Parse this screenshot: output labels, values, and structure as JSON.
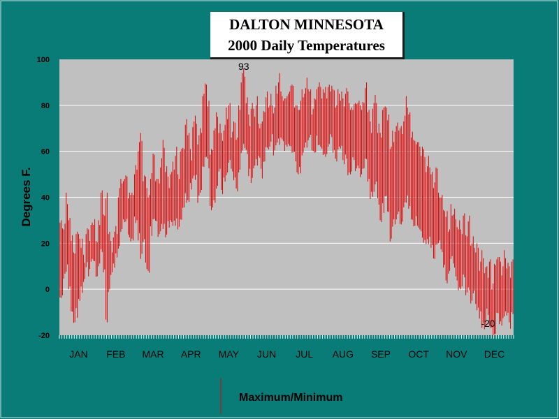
{
  "chart_data": {
    "type": "bar",
    "title": "DALTON MINNESOTA",
    "subtitle": "2000 Daily Temperatures",
    "ylabel": "Degrees F.",
    "xlabel": "",
    "ylim": [
      -20,
      100
    ],
    "yticks": [
      -20,
      0,
      20,
      40,
      60,
      80,
      100
    ],
    "grid": true,
    "legend": {
      "position": "bottom-center",
      "label": "Maximum/Minimum"
    },
    "series_color": "#e00000",
    "months": [
      "JAN",
      "FEB",
      "MAR",
      "APR",
      "MAY",
      "JUN",
      "JUL",
      "AUG",
      "SEP",
      "OCT",
      "NOV",
      "DEC"
    ],
    "annotations": [
      {
        "text": "93",
        "x_day": 148,
        "y": 93
      },
      {
        "text": "-20",
        "x_day": 345,
        "y": -20
      }
    ],
    "daily_max_monthly_samples": {
      "JAN": [
        27,
        27,
        38,
        30,
        25,
        15,
        27,
        22,
        20,
        12,
        25,
        22,
        28,
        32,
        20
      ],
      "FEB": [
        30,
        40,
        33,
        38,
        25,
        20,
        24,
        27,
        42,
        48,
        45,
        50,
        38,
        42,
        40
      ],
      "MAR": [
        52,
        62,
        65,
        48,
        45,
        40,
        52,
        58,
        50,
        46,
        55,
        62,
        52,
        45,
        50
      ],
      "APR": [
        55,
        60,
        50,
        58,
        62,
        70,
        68,
        60,
        72,
        75,
        65,
        70,
        82,
        90,
        78
      ],
      "MAY": [
        60,
        72,
        75,
        70,
        65,
        70,
        75,
        80,
        70,
        72,
        68,
        78,
        92,
        93,
        82
      ],
      "JUN": [
        75,
        80,
        78,
        82,
        72,
        70,
        78,
        82,
        80,
        84,
        78,
        88,
        92,
        86,
        80
      ],
      "JUL": [
        84,
        90,
        88,
        82,
        78,
        80,
        84,
        86,
        88,
        86,
        80,
        82,
        90,
        88,
        85
      ],
      "AUG": [
        84,
        88,
        90,
        86,
        82,
        85,
        84,
        80,
        86,
        82,
        78,
        82,
        80,
        84,
        78
      ],
      "SEP": [
        82,
        86,
        78,
        72,
        80,
        84,
        70,
        68,
        76,
        80,
        72,
        62,
        68,
        70,
        72
      ],
      "OCT": [
        68,
        74,
        80,
        76,
        70,
        64,
        66,
        62,
        60,
        58,
        52,
        54,
        50,
        48,
        52
      ],
      "NOV": [
        42,
        38,
        35,
        30,
        26,
        36,
        34,
        30,
        28,
        26,
        30,
        24,
        28,
        20,
        22
      ],
      "DEC": [
        18,
        10,
        14,
        8,
        6,
        12,
        4,
        10,
        16,
        12,
        8,
        14,
        10,
        6,
        12
      ]
    },
    "daily_min_monthly_samples": {
      "JAN": [
        -2,
        5,
        10,
        0,
        -8,
        -14,
        -10,
        -5,
        0,
        5,
        10,
        8,
        12,
        14,
        6
      ],
      "FEB": [
        10,
        15,
        8,
        -12,
        0,
        5,
        10,
        15,
        20,
        25,
        28,
        30,
        25,
        22,
        20
      ],
      "MAR": [
        30,
        22,
        15,
        20,
        10,
        8,
        25,
        30,
        28,
        24,
        26,
        28,
        22,
        28,
        30
      ],
      "APR": [
        28,
        30,
        26,
        32,
        36,
        40,
        38,
        45,
        50,
        48,
        40,
        42,
        55,
        58,
        55
      ],
      "MAY": [
        35,
        40,
        45,
        50,
        42,
        48,
        52,
        55,
        50,
        48,
        45,
        52,
        58,
        62,
        60
      ],
      "JUN": [
        50,
        48,
        52,
        55,
        58,
        50,
        55,
        60,
        62,
        65,
        60,
        62,
        64,
        66,
        62
      ],
      "JUL": [
        62,
        64,
        60,
        58,
        50,
        52,
        60,
        62,
        64,
        66,
        62,
        60,
        65,
        62,
        60
      ],
      "AUG": [
        60,
        62,
        65,
        60,
        58,
        62,
        60,
        55,
        58,
        52,
        50,
        55,
        52,
        55,
        50
      ],
      "SEP": [
        52,
        55,
        48,
        40,
        42,
        45,
        38,
        30,
        35,
        40,
        32,
        22,
        28,
        30,
        32
      ],
      "OCT": [
        30,
        36,
        40,
        35,
        32,
        28,
        30,
        26,
        24,
        22,
        20,
        22,
        18,
        15,
        20
      ],
      "NOV": [
        20,
        15,
        10,
        5,
        8,
        12,
        10,
        5,
        2,
        0,
        4,
        -2,
        2,
        -5,
        -3
      ],
      "DEC": [
        -8,
        -12,
        -15,
        -18,
        -10,
        -16,
        -19,
        -20,
        -12,
        -14,
        -15,
        -10,
        -12,
        -16,
        -10
      ]
    }
  }
}
